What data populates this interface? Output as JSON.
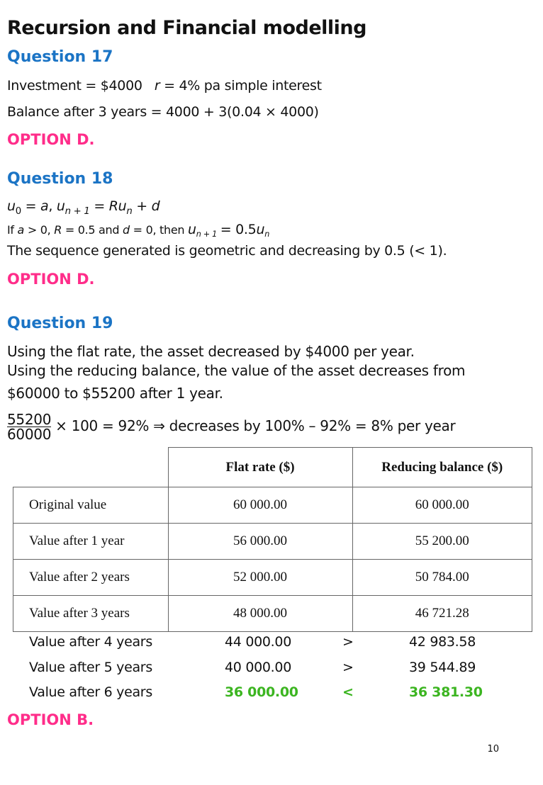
{
  "title": "Recursion and Financial modelling",
  "q17": {
    "heading": "Question 17",
    "line1_a": "Investment = $4000",
    "line1_r": "r",
    "line1_b": " = 4% pa simple interest",
    "line2": "Balance after 3 years = 4000 + 3(0.04 × 4000)",
    "option": "OPTION D."
  },
  "q18": {
    "heading": "Question 18",
    "option": "OPTION D.",
    "line3": "The sequence generated is geometric and decreasing by 0.5 (< 1)."
  },
  "q19": {
    "heading": "Question 19",
    "line1": "Using the flat rate, the asset decreased by $4000 per year.",
    "line2": "Using the reducing balance, the value of the asset decreases from",
    "line3": "$60000 to $55200 after 1 year.",
    "frac_num": "55200",
    "frac_den": "60000",
    "frac_rest": " × 100 = 92%  ⇒ decreases by 100% – 92% = 8% per year",
    "option": "OPTION B."
  },
  "table": {
    "headers": [
      "Flat rate ($)",
      "Reducing balance ($)"
    ],
    "rows": [
      {
        "label": "Original value",
        "flat": "60 000.00",
        "reducing": "60 000.00"
      },
      {
        "label": "Value after 1 year",
        "flat": "56 000.00",
        "reducing": "55 200.00"
      },
      {
        "label": "Value after 2 years",
        "flat": "52 000.00",
        "reducing": "50 784.00"
      },
      {
        "label": "Value after 3 years",
        "flat": "48 000.00",
        "reducing": "46 721.28"
      }
    ]
  },
  "extra_rows": [
    {
      "label": "Value after 4 years",
      "flat": "44 000.00",
      "cmp": ">",
      "reducing": "42 983.58"
    },
    {
      "label": "Value after 5 years",
      "flat": "40 000.00",
      "cmp": ">",
      "reducing": "39 544.89"
    },
    {
      "label": "Value after 6 years",
      "flat": "36 000.00",
      "cmp": "<",
      "reducing": "36 381.30"
    }
  ],
  "highlight_color": "#3cb521",
  "page_number": "10"
}
